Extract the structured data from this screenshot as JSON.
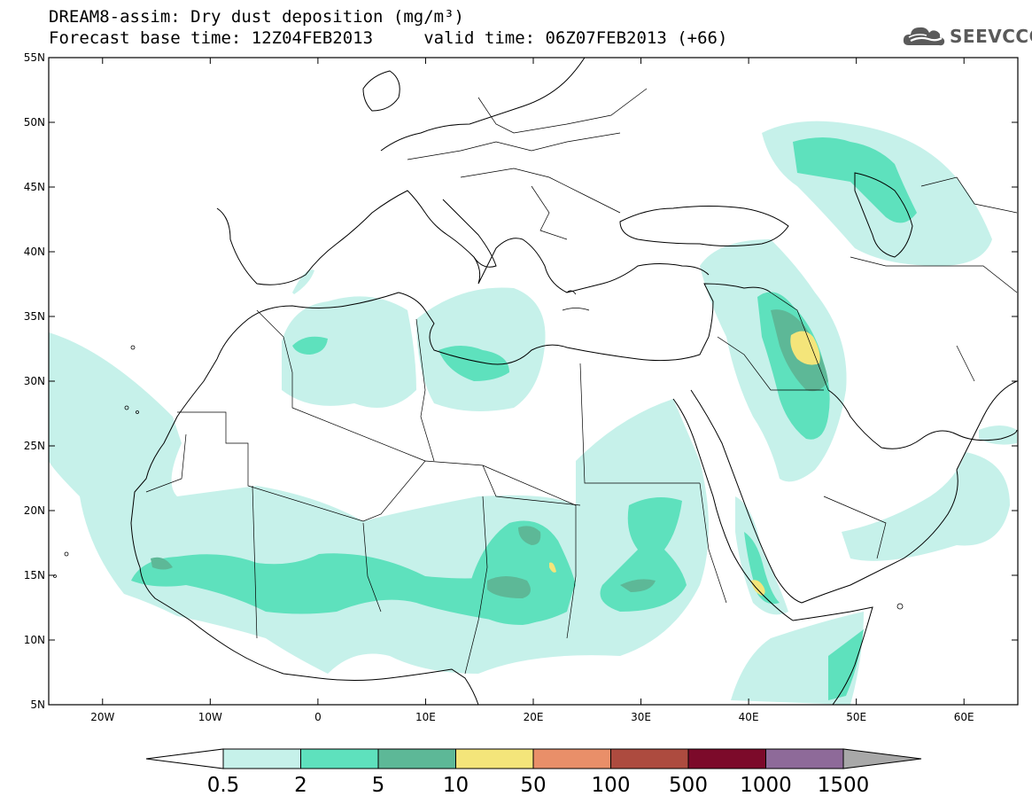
{
  "title_line1": "DREAM8-assim: Dry dust deposition (mg/m³)",
  "title_line2": "Forecast base time: 12Z04FEB2013     valid time: 06Z07FEB2013 (+66)",
  "logo": {
    "text": "SEEVCCC",
    "icon": "cloud-logo-icon",
    "color": "#5a5a5a"
  },
  "map": {
    "lon_range": [
      -25,
      65
    ],
    "lat_range": [
      5,
      55
    ],
    "lat_ticks": [
      {
        "value": 55,
        "label": "55N"
      },
      {
        "value": 50,
        "label": "50N"
      },
      {
        "value": 45,
        "label": "45N"
      },
      {
        "value": 40,
        "label": "40N"
      },
      {
        "value": 35,
        "label": "35N"
      },
      {
        "value": 30,
        "label": "30N"
      },
      {
        "value": 25,
        "label": "25N"
      },
      {
        "value": 20,
        "label": "20N"
      },
      {
        "value": 15,
        "label": "15N"
      },
      {
        "value": 10,
        "label": "10N"
      },
      {
        "value": 5,
        "label": "5N"
      }
    ],
    "lon_ticks": [
      {
        "value": -20,
        "label": "20W"
      },
      {
        "value": -10,
        "label": "10W"
      },
      {
        "value": 0,
        "label": "0"
      },
      {
        "value": 10,
        "label": "10E"
      },
      {
        "value": 20,
        "label": "20E"
      },
      {
        "value": 30,
        "label": "30E"
      },
      {
        "value": 40,
        "label": "40E"
      },
      {
        "value": 50,
        "label": "50E"
      },
      {
        "value": 60,
        "label": "60E"
      }
    ]
  },
  "legend": {
    "labels": [
      "0.5",
      "2",
      "5",
      "10",
      "50",
      "100",
      "500",
      "1000",
      "1500"
    ],
    "colors": [
      "#c6f1ea",
      "#5ee1bd",
      "#5db897",
      "#f4e57a",
      "#e98f69",
      "#ad4b3f",
      "#7c0a2a",
      "#8e6a99"
    ],
    "below_color": "#ffffff",
    "above_color": "#a8a8a8"
  },
  "colors": {
    "c1": "#c6f1ea",
    "c2": "#5ee1bd",
    "c3": "#5db897",
    "c4": "#f4e57a"
  }
}
